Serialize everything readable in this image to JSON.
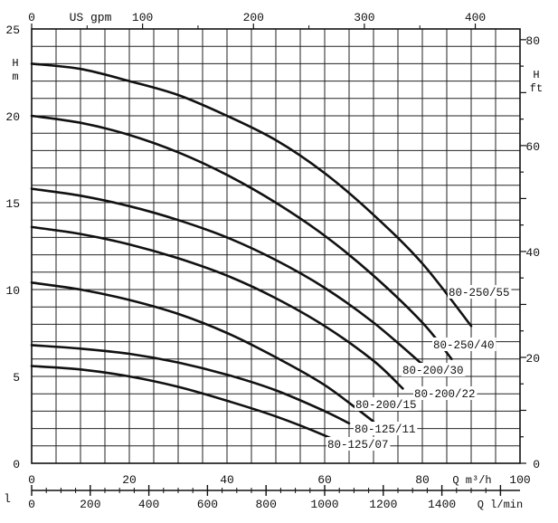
{
  "colors": {
    "ink": "#111111",
    "grid": "#222222",
    "background": "#ffffff"
  },
  "chart_data": {
    "type": "line",
    "title": "",
    "axes": {
      "q_m3h": {
        "unit": "Q m³/h",
        "range": [
          0,
          100
        ],
        "ticks": [
          0,
          20,
          40,
          60,
          80,
          100
        ],
        "tick_labels": [
          "0",
          "20",
          "40",
          "60",
          "80",
          "100"
        ]
      },
      "q_usgpm": {
        "unit": "US gpm",
        "range": [
          0,
          440
        ],
        "ticks": [
          0,
          100,
          200,
          300,
          400
        ],
        "tick_labels": [
          "0",
          "100",
          "200",
          "300",
          "400"
        ]
      },
      "q_lmin": {
        "unit": "Q l/min",
        "range": [
          0,
          1667
        ],
        "ticks": [
          0,
          200,
          400,
          600,
          800,
          1000,
          1200,
          1400
        ],
        "tick_labels": [
          "0",
          "200",
          "400",
          "600",
          "800",
          "1000",
          "1200",
          "1400"
        ],
        "corner_mark": "l"
      },
      "head_m": {
        "unit": "H m",
        "range": [
          0,
          25
        ],
        "ticks": [
          0,
          5,
          10,
          15,
          20,
          25
        ],
        "tick_labels": [
          "0",
          "5",
          "10",
          "15",
          "20",
          "25"
        ]
      },
      "head_ft": {
        "unit": "H ft",
        "range": [
          0,
          82
        ],
        "ticks": [
          0,
          20,
          40,
          60,
          80
        ],
        "tick_labels": [
          "0",
          "20",
          "40",
          "60",
          "80"
        ]
      }
    },
    "series": [
      {
        "name": "80-250/55",
        "x": [
          0,
          10,
          20,
          30,
          40,
          50,
          60,
          70,
          80,
          90
        ],
        "y": [
          23.0,
          22.7,
          22.0,
          21.2,
          20.0,
          18.6,
          16.7,
          14.3,
          11.5,
          7.9
        ]
      },
      {
        "name": "80-250/40",
        "x": [
          0,
          10,
          20,
          30,
          40,
          50,
          60,
          70,
          80,
          86
        ],
        "y": [
          20.0,
          19.6,
          18.9,
          17.9,
          16.6,
          15.0,
          13.1,
          10.8,
          8.1,
          6.0
        ]
      },
      {
        "name": "80-200/30",
        "x": [
          0,
          10,
          20,
          30,
          40,
          50,
          60,
          70,
          80
        ],
        "y": [
          15.8,
          15.4,
          14.8,
          14.0,
          13.0,
          11.7,
          10.1,
          8.1,
          5.7
        ]
      },
      {
        "name": "80-200/22",
        "x": [
          0,
          10,
          20,
          30,
          40,
          50,
          60,
          70,
          76
        ],
        "y": [
          13.6,
          13.2,
          12.6,
          11.8,
          10.8,
          9.5,
          7.9,
          5.9,
          4.3
        ]
      },
      {
        "name": "80-200/15",
        "x": [
          0,
          10,
          20,
          30,
          40,
          50,
          60,
          70
        ],
        "y": [
          10.4,
          10.0,
          9.4,
          8.6,
          7.5,
          6.1,
          4.5,
          2.4
        ]
      },
      {
        "name": "80-125/11",
        "x": [
          0,
          10,
          20,
          30,
          40,
          50,
          60,
          65
        ],
        "y": [
          6.8,
          6.6,
          6.3,
          5.8,
          5.1,
          4.2,
          3.0,
          2.3
        ]
      },
      {
        "name": "80-125/07",
        "x": [
          0,
          10,
          20,
          30,
          40,
          50,
          60,
          66
        ],
        "y": [
          5.6,
          5.4,
          5.0,
          4.4,
          3.6,
          2.7,
          1.6,
          0.8
        ]
      }
    ]
  }
}
